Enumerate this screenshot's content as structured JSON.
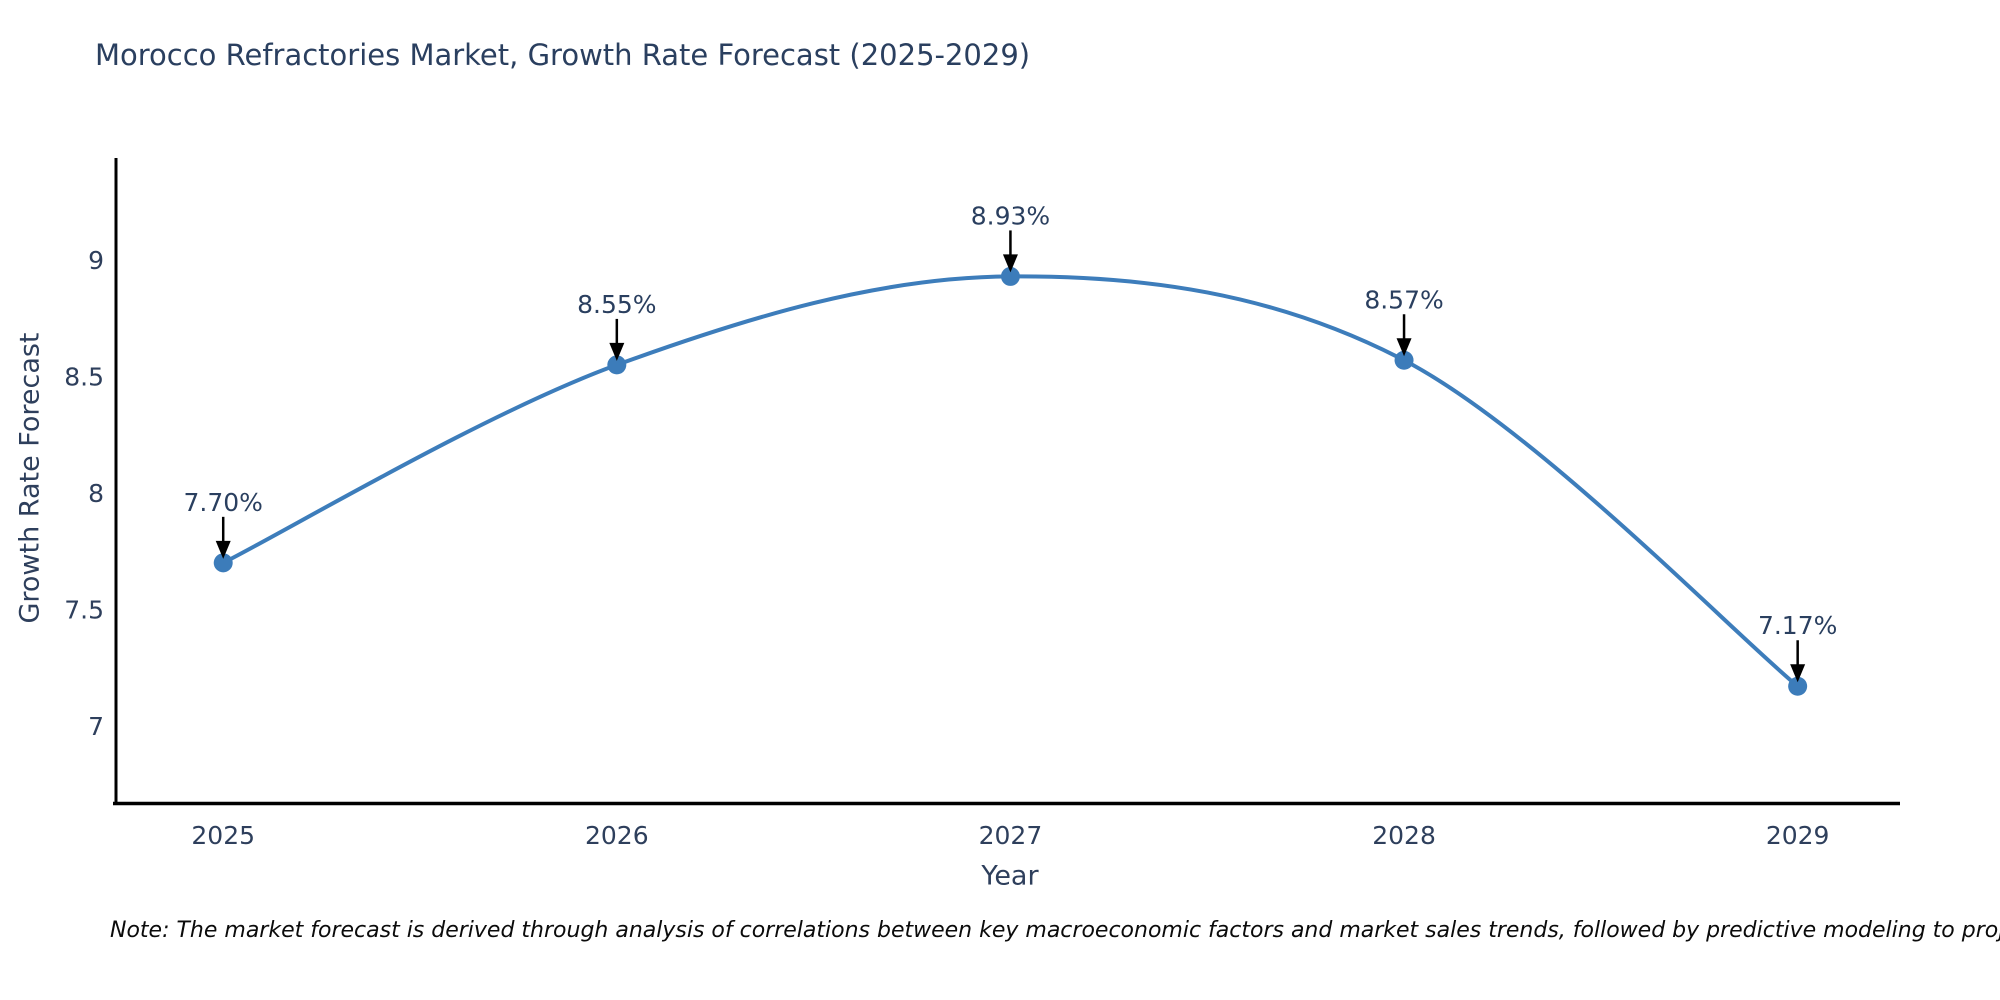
{
  "chart": {
    "title": "Morocco Refractories Market, Growth Rate Forecast (2025-2029)",
    "note": "Note: The market forecast is derived through analysis of correlations between key macroeconomic factors and market sales trends, followed by predictive modeling to project future sales"
  },
  "chart_data": {
    "type": "line",
    "title": "Morocco Refractories Market, Growth Rate Forecast (2025-2029)",
    "xlabel": "Year",
    "ylabel": "Growth Rate Forecast",
    "x": [
      2025,
      2026,
      2027,
      2028,
      2029
    ],
    "values": [
      7.7,
      8.55,
      8.93,
      8.57,
      7.17
    ],
    "point_labels": [
      "7.70%",
      "8.55%",
      "8.93%",
      "8.57%",
      "7.17%"
    ],
    "yticks": [
      7,
      7.5,
      8,
      8.5,
      9
    ],
    "ylim": [
      6.66,
      9.43
    ],
    "xlim": [
      2024.72,
      2029.26
    ],
    "grid": false,
    "legend": false,
    "line_color": "#3d7dbb",
    "marker_color": "#3c7cba",
    "arrow_color": "#000000",
    "axis_color": "#000000",
    "annotation_color": "#2a3f5f",
    "tick_color": "#2e3f5c"
  }
}
